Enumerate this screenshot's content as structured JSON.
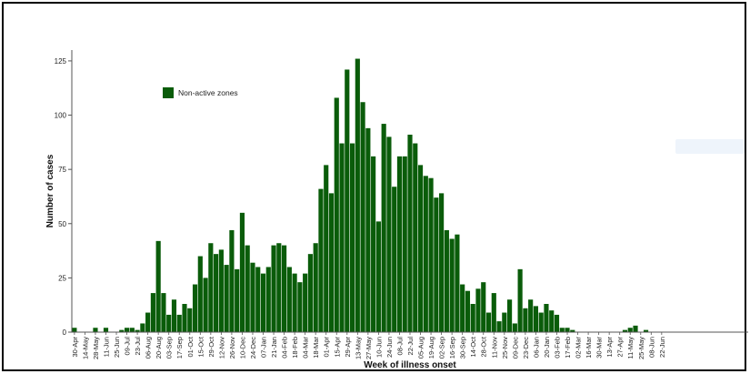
{
  "chart_data": {
    "type": "bar",
    "xlabel": "Week of illness onset",
    "ylabel": "Number of cases",
    "ylim": [
      0,
      130
    ],
    "yticks": [
      0,
      25,
      50,
      75,
      100,
      125
    ],
    "legend": {
      "label": "Non-active zones",
      "position": "top-left"
    },
    "bar_color": "#0a5c0a",
    "x_tick_labels": [
      "30-Apr",
      "14-May",
      "28-May",
      "11-Jun",
      "25-Jun",
      "09-Jul",
      "23-Jul",
      "06-Aug",
      "20-Aug",
      "03-Sep",
      "17-Sep",
      "01-Oct",
      "15-Oct",
      "29-Oct",
      "12-Nov",
      "26-Nov",
      "10-Dec",
      "24-Dec",
      "07-Jan",
      "21-Jan",
      "04-Feb",
      "18-Feb",
      "04-Mar",
      "18-Mar",
      "01-Apr",
      "15-Apr",
      "29-Apr",
      "13-May",
      "27-May",
      "10-Jun",
      "24-Jun",
      "08-Jul",
      "22-Jul",
      "05-Aug",
      "19-Aug",
      "02-Sep",
      "16-Sep",
      "30-Sep",
      "14-Oct",
      "28-Oct",
      "11-Nov",
      "25-Nov",
      "09-Dec",
      "23-Dec",
      "06-Jan",
      "20-Jan",
      "03-Feb",
      "17-Feb",
      "02-Mar",
      "16-Mar",
      "30-Mar",
      "13-Apr",
      "27-Apr",
      "11-May",
      "25-May",
      "08-Jun",
      "22-Jun"
    ],
    "values": [
      2,
      0,
      0,
      0,
      2,
      0,
      2,
      0,
      0,
      1,
      2,
      2,
      1,
      4,
      9,
      18,
      42,
      18,
      8,
      15,
      8,
      13,
      11,
      22,
      35,
      25,
      41,
      36,
      38,
      31,
      47,
      29,
      55,
      40,
      32,
      30,
      27,
      30,
      40,
      41,
      40,
      30,
      27,
      23,
      27,
      36,
      41,
      66,
      77,
      64,
      108,
      87,
      121,
      87,
      126,
      106,
      94,
      81,
      51,
      96,
      90,
      67,
      81,
      81,
      91,
      87,
      77,
      72,
      71,
      62,
      64,
      47,
      43,
      45,
      22,
      19,
      13,
      20,
      23,
      9,
      18,
      5,
      9,
      15,
      4,
      29,
      11,
      15,
      12,
      9,
      13,
      10,
      8,
      2,
      2,
      1,
      0,
      0,
      0,
      0,
      0,
      0,
      0,
      0,
      0,
      1,
      2,
      3,
      0,
      1,
      0,
      0,
      0,
      0,
      0,
      0,
      0,
      0,
      0,
      0,
      0,
      0,
      0,
      0,
      0,
      0,
      0,
      0,
      0
    ]
  }
}
